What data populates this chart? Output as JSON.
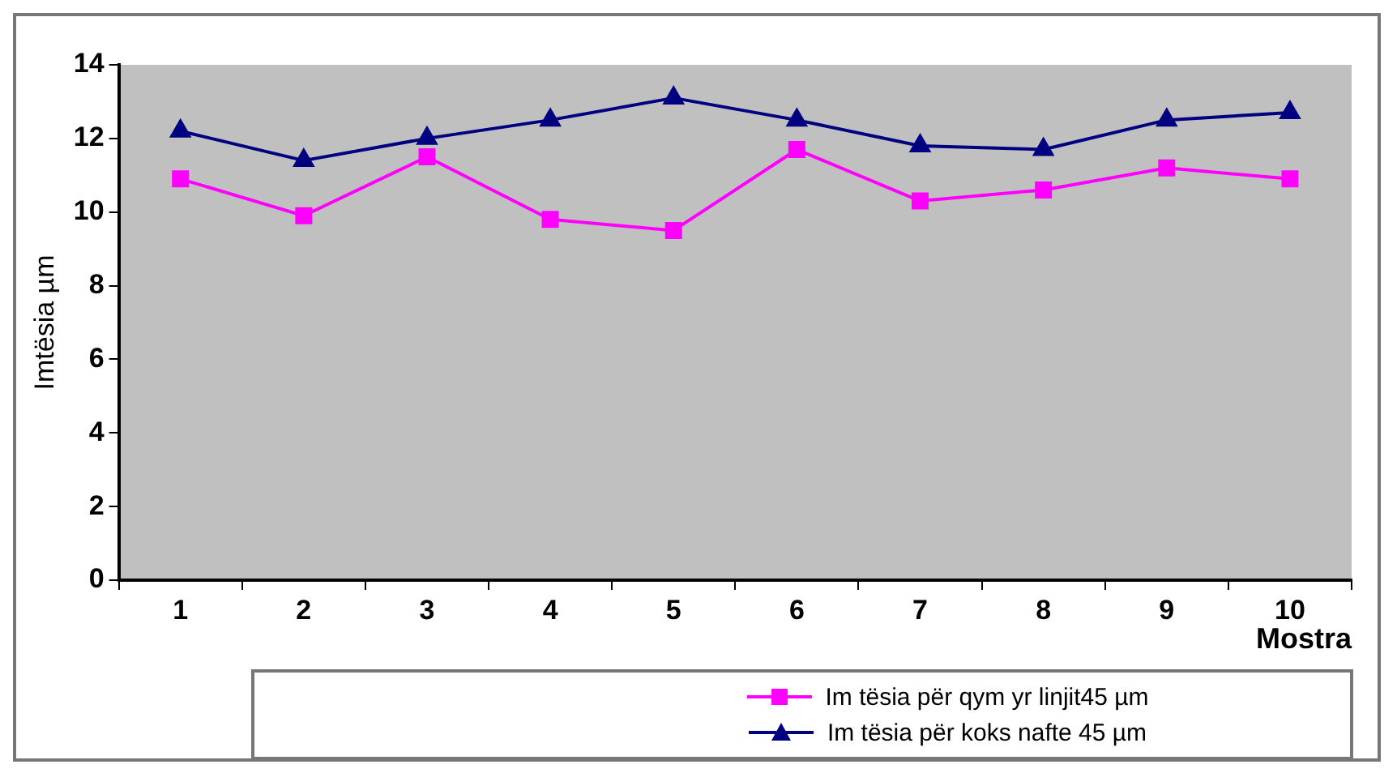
{
  "chart_data": {
    "type": "line",
    "ylabel": "Imtësia µm",
    "xlabel": "Mostra",
    "categories": [
      "1",
      "2",
      "3",
      "4",
      "5",
      "6",
      "7",
      "8",
      "9",
      "10"
    ],
    "series": [
      {
        "name": "Im tësia për qym yr linjit45 µm",
        "color": "#ff00ff",
        "marker": "square",
        "values": [
          10.9,
          9.9,
          11.5,
          9.8,
          9.5,
          11.7,
          10.3,
          10.6,
          11.2,
          10.9
        ]
      },
      {
        "name": "Im tësia për koks nafte 45 µm",
        "color": "#000080",
        "marker": "triangle",
        "values": [
          12.2,
          11.4,
          12.0,
          12.5,
          13.1,
          12.5,
          11.8,
          11.7,
          12.5,
          12.7
        ]
      }
    ],
    "ylim": [
      0,
      14
    ],
    "yticks": [
      0,
      2,
      4,
      6,
      8,
      10,
      12,
      14
    ],
    "grid": false,
    "legend": "bottom",
    "line_style": "solid"
  }
}
